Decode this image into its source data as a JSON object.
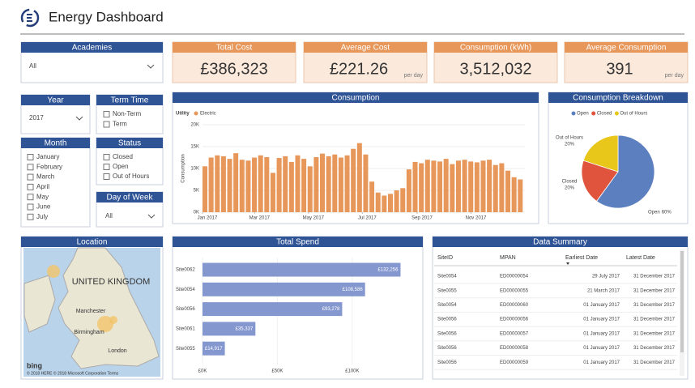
{
  "header": {
    "title": "Energy Dashboard"
  },
  "filters": {
    "academies": {
      "title": "Academies",
      "value": "All"
    },
    "year": {
      "title": "Year",
      "value": "2017"
    },
    "term_time": {
      "title": "Term Time",
      "options": [
        "Non-Term",
        "Term"
      ]
    },
    "month": {
      "title": "Month",
      "options": [
        "January",
        "February",
        "March",
        "April",
        "May",
        "June",
        "July"
      ]
    },
    "status": {
      "title": "Status",
      "options": [
        "Closed",
        "Open",
        "Out of Hours"
      ]
    },
    "day_of_week": {
      "title": "Day of Week",
      "value": "All"
    }
  },
  "kpis": [
    {
      "title": "Total Cost",
      "value": "£386,323"
    },
    {
      "title": "Average Cost",
      "value": "£221.26",
      "unit": "per day"
    },
    {
      "title": "Consumption (kWh)",
      "value": "3,512,032"
    },
    {
      "title": "Average Consumption",
      "value": "391",
      "unit": "per day"
    }
  ],
  "location": {
    "title": "Location",
    "labels": [
      "UNITED KINGDOM",
      "Manchester",
      "Birmingham",
      "London"
    ],
    "logo": "bing",
    "attribution": "© 2018 HERE  © 2018 Microsoft Corporation  Terms"
  },
  "chart_data": [
    {
      "type": "bar",
      "title": "Consumption",
      "legend_title": "Utility",
      "y_label": "Consumption",
      "x": [
        0,
        7,
        14,
        21,
        28,
        35,
        42,
        49,
        56,
        63,
        70,
        77,
        84,
        91,
        98,
        105,
        112,
        119,
        126,
        133,
        140,
        147,
        154,
        161,
        168,
        175,
        182,
        189,
        196,
        203,
        210,
        217,
        224,
        231,
        238,
        245,
        252,
        259,
        266,
        273,
        280,
        287,
        294,
        301,
        308,
        315,
        322,
        329,
        336,
        343,
        350,
        357
      ],
      "series": [
        {
          "name": "Electric",
          "color": "#e8975a",
          "values": [
            10500,
            12500,
            13000,
            12800,
            12200,
            13500,
            12000,
            11800,
            12500,
            13000,
            12600,
            9000,
            12400,
            12800,
            11500,
            13000,
            12200,
            10500,
            12600,
            13400,
            12800,
            13200,
            12500,
            13000,
            14500,
            15800,
            13200,
            7000,
            4500,
            3800,
            4200,
            5000,
            5500,
            9800,
            11500,
            11200,
            12000,
            11800,
            11600,
            12200,
            11000,
            11800,
            12000,
            11600,
            11400,
            11800,
            12000,
            10800,
            11200,
            9500,
            8000,
            7500
          ]
        }
      ],
      "xlim": [
        0,
        365
      ],
      "xticks": [
        {
          "value": 0,
          "label": "Jan 2017"
        },
        {
          "value": 59,
          "label": "Mar 2017"
        },
        {
          "value": 120,
          "label": "May 2017"
        },
        {
          "value": 181,
          "label": "Jul 2017"
        },
        {
          "value": 243,
          "label": "Sep 2017"
        },
        {
          "value": 304,
          "label": "Nov 2017"
        }
      ],
      "ylim": [
        0,
        20000
      ],
      "yticks": [
        {
          "value": 0,
          "label": "0K"
        },
        {
          "value": 5000,
          "label": "5K"
        },
        {
          "value": 10000,
          "label": "10K"
        },
        {
          "value": 15000,
          "label": "15K"
        },
        {
          "value": 20000,
          "label": "20K"
        }
      ]
    },
    {
      "type": "pie",
      "title": "Consumption Breakdown",
      "categories": [
        "Open",
        "Closed",
        "Out of Hours"
      ],
      "values": [
        60,
        20,
        20
      ],
      "value_labels": [
        "60%",
        "20%",
        "20%"
      ],
      "colors": [
        "#5b7fbf",
        "#e0533c",
        "#e8c61a"
      ]
    },
    {
      "type": "hbar",
      "title": "Total Spend",
      "categories": [
        "Site0062",
        "Site0054",
        "Site0056",
        "Site0061",
        "Site0055"
      ],
      "values": [
        132256,
        108586,
        93278,
        35337,
        14917
      ],
      "value_labels": [
        "£132,256",
        "£108,586",
        "£93,278",
        "£35,337",
        "£14,917"
      ],
      "color": "#8597cf",
      "xlim": [
        0,
        145000
      ],
      "xticks": [
        {
          "value": 0,
          "label": "£0K"
        },
        {
          "value": 50000,
          "label": "£50K"
        },
        {
          "value": 100000,
          "label": "£100K"
        }
      ]
    }
  ],
  "table": {
    "title": "Data Summary",
    "columns": [
      "SiteID",
      "MPAN",
      "Earliest Date",
      "Latest Date"
    ],
    "rows": [
      [
        "Site0054",
        "ED00000054",
        "29 July 2017",
        "31 December 2017"
      ],
      [
        "Site0055",
        "ED00000055",
        "21 March 2017",
        "31 December 2017"
      ],
      [
        "Site0054",
        "ED00000060",
        "01 January 2017",
        "31 December 2017"
      ],
      [
        "Site0056",
        "ED00000056",
        "01 January 2017",
        "31 December 2017"
      ],
      [
        "Site0056",
        "ED00000057",
        "01 January 2017",
        "31 December 2017"
      ],
      [
        "Site0056",
        "ED00000058",
        "01 January 2017",
        "31 December 2017"
      ],
      [
        "Site0056",
        "ED00000059",
        "01 January 2017",
        "31 December 2017"
      ]
    ]
  }
}
